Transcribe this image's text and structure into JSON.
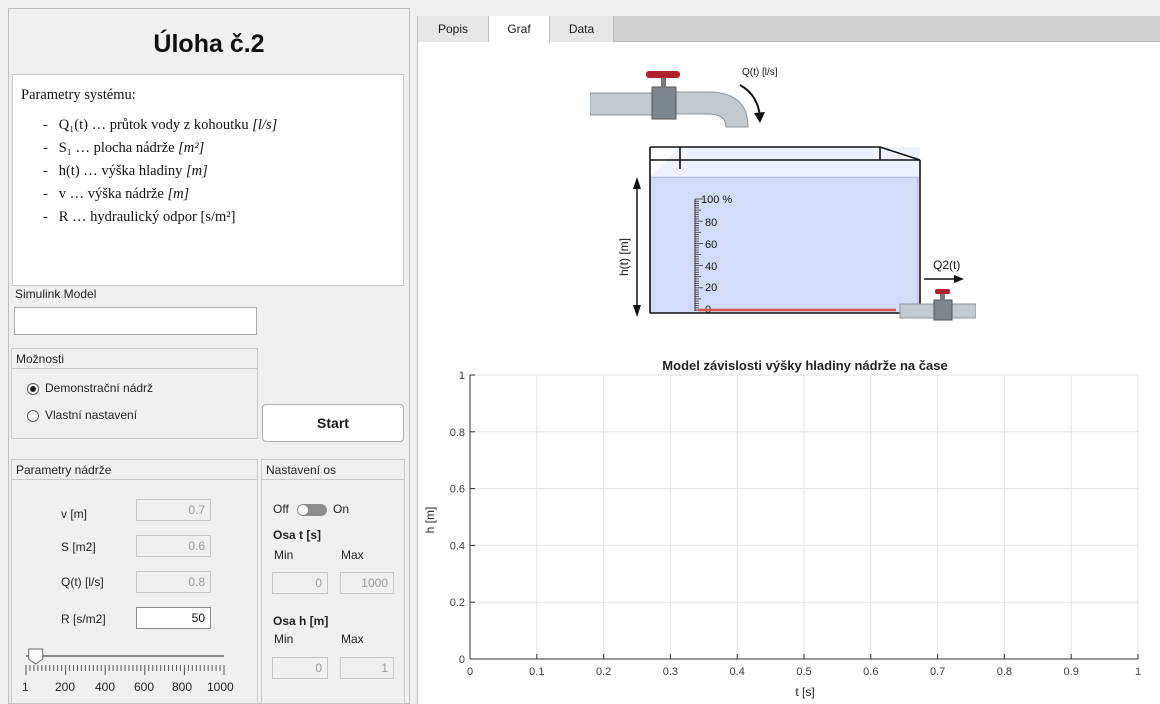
{
  "left_panel": {
    "title": "Úloha č.2",
    "params_heading": "Parametry systému:",
    "params_items": [
      {
        "symbol": "Q₁(t)",
        "text": "… průtok vody z kohoutku",
        "unit": "[l/s]"
      },
      {
        "symbol": "S₁",
        "text": "… plocha nádrže",
        "unit": "[m²]"
      },
      {
        "symbol": "h(t)",
        "text": "… výška hladiny",
        "unit": "[m]"
      },
      {
        "symbol": "v",
        "text": "… výška nádrže",
        "unit": "[m]"
      },
      {
        "symbol": "R",
        "text": "… hydraulický odpor",
        "unit": "[s/m²]"
      }
    ],
    "simulink_label": "Simulink Model",
    "simulink_value": "",
    "moznosti_title": "Možnosti",
    "options": [
      "Demonstrační nádrž",
      "Vlastní nastavení"
    ],
    "selected_option": 0,
    "start_label": "Start"
  },
  "tank_params": {
    "title": "Parametry nádrže",
    "fields": [
      {
        "label": "v [m]",
        "value": "0.7",
        "enabled": false
      },
      {
        "label": "S [m2]",
        "value": "0.6",
        "enabled": false
      },
      {
        "label": "Q(t) [l/s]",
        "value": "0.8",
        "enabled": false
      },
      {
        "label": "R [s/m2]",
        "value": "50",
        "enabled": true
      }
    ],
    "slider": {
      "value": 50,
      "min": 1,
      "max": 1000,
      "labels": [
        "1",
        "200",
        "400",
        "600",
        "800",
        "1000"
      ]
    }
  },
  "axes_settings": {
    "title": "Nastavení os",
    "toggle_off": "Off",
    "toggle_on": "On",
    "toggle_state": "Off",
    "t_heading": "Osa t [s]",
    "h_heading": "Osa h [m]",
    "min_label": "Min",
    "max_label": "Max",
    "t_min": "0",
    "t_max": "1000",
    "h_min": "0",
    "h_max": "1"
  },
  "tabs": [
    "Popis",
    "Graf",
    "Data"
  ],
  "active_tab": 1,
  "illustration": {
    "q_in_label": "Q(t) [l/s]",
    "q_out_label": "Q2(t)",
    "h_label": "h(t) [m]",
    "scale_labels": [
      "100 %",
      "80",
      "60",
      "40",
      "20",
      "0"
    ]
  },
  "chart_data": {
    "type": "line",
    "title": "Model závislosti výšky hladiny nádrže na čase",
    "xlabel": "t [s]",
    "ylabel": "h [m]",
    "xlim": [
      0,
      1
    ],
    "ylim": [
      0,
      1
    ],
    "xticks": [
      "0",
      "0.1",
      "0.2",
      "0.3",
      "0.4",
      "0.5",
      "0.6",
      "0.7",
      "0.8",
      "0.9",
      "1"
    ],
    "yticks": [
      "0",
      "0.2",
      "0.4",
      "0.6",
      "0.8",
      "1"
    ],
    "grid": true,
    "series": []
  },
  "colors": {
    "accent": "#0072bd",
    "water": "#d3dcf7",
    "water_level": "#d9534f",
    "valve": "#b0222b"
  }
}
